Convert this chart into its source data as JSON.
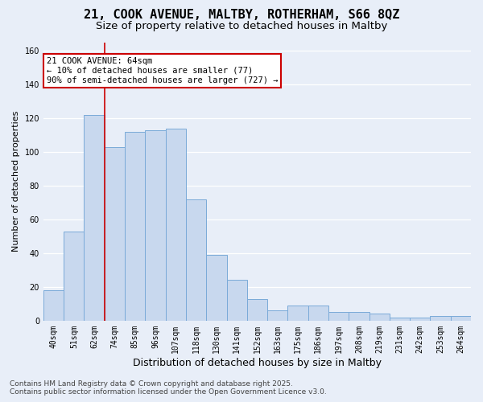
{
  "title_line1": "21, COOK AVENUE, MALTBY, ROTHERHAM, S66 8QZ",
  "title_line2": "Size of property relative to detached houses in Maltby",
  "xlabel": "Distribution of detached houses by size in Maltby",
  "ylabel": "Number of detached properties",
  "categories": [
    "40sqm",
    "51sqm",
    "62sqm",
    "74sqm",
    "85sqm",
    "96sqm",
    "107sqm",
    "118sqm",
    "130sqm",
    "141sqm",
    "152sqm",
    "163sqm",
    "175sqm",
    "186sqm",
    "197sqm",
    "208sqm",
    "219sqm",
    "231sqm",
    "242sqm",
    "253sqm",
    "264sqm"
  ],
  "values": [
    18,
    53,
    122,
    103,
    112,
    113,
    114,
    72,
    39,
    24,
    13,
    6,
    9,
    9,
    5,
    5,
    4,
    2,
    2,
    3,
    3
  ],
  "bar_color": "#c8d8ee",
  "bar_edge_color": "#7aaad8",
  "vline_color": "#cc0000",
  "vline_x": 2.5,
  "annotation_text": "21 COOK AVENUE: 64sqm\n← 10% of detached houses are smaller (77)\n90% of semi-detached houses are larger (727) →",
  "annotation_box_edgecolor": "#cc0000",
  "ylim": [
    0,
    165
  ],
  "yticks": [
    0,
    20,
    40,
    60,
    80,
    100,
    120,
    140,
    160
  ],
  "bg_color": "#e8eef8",
  "grid_color": "#ffffff",
  "footer_text": "Contains HM Land Registry data © Crown copyright and database right 2025.\nContains public sector information licensed under the Open Government Licence v3.0.",
  "title_fontsize": 11,
  "subtitle_fontsize": 9.5,
  "ylabel_fontsize": 8,
  "xlabel_fontsize": 9,
  "tick_fontsize": 7,
  "annotation_fontsize": 7.5,
  "footer_fontsize": 6.5
}
